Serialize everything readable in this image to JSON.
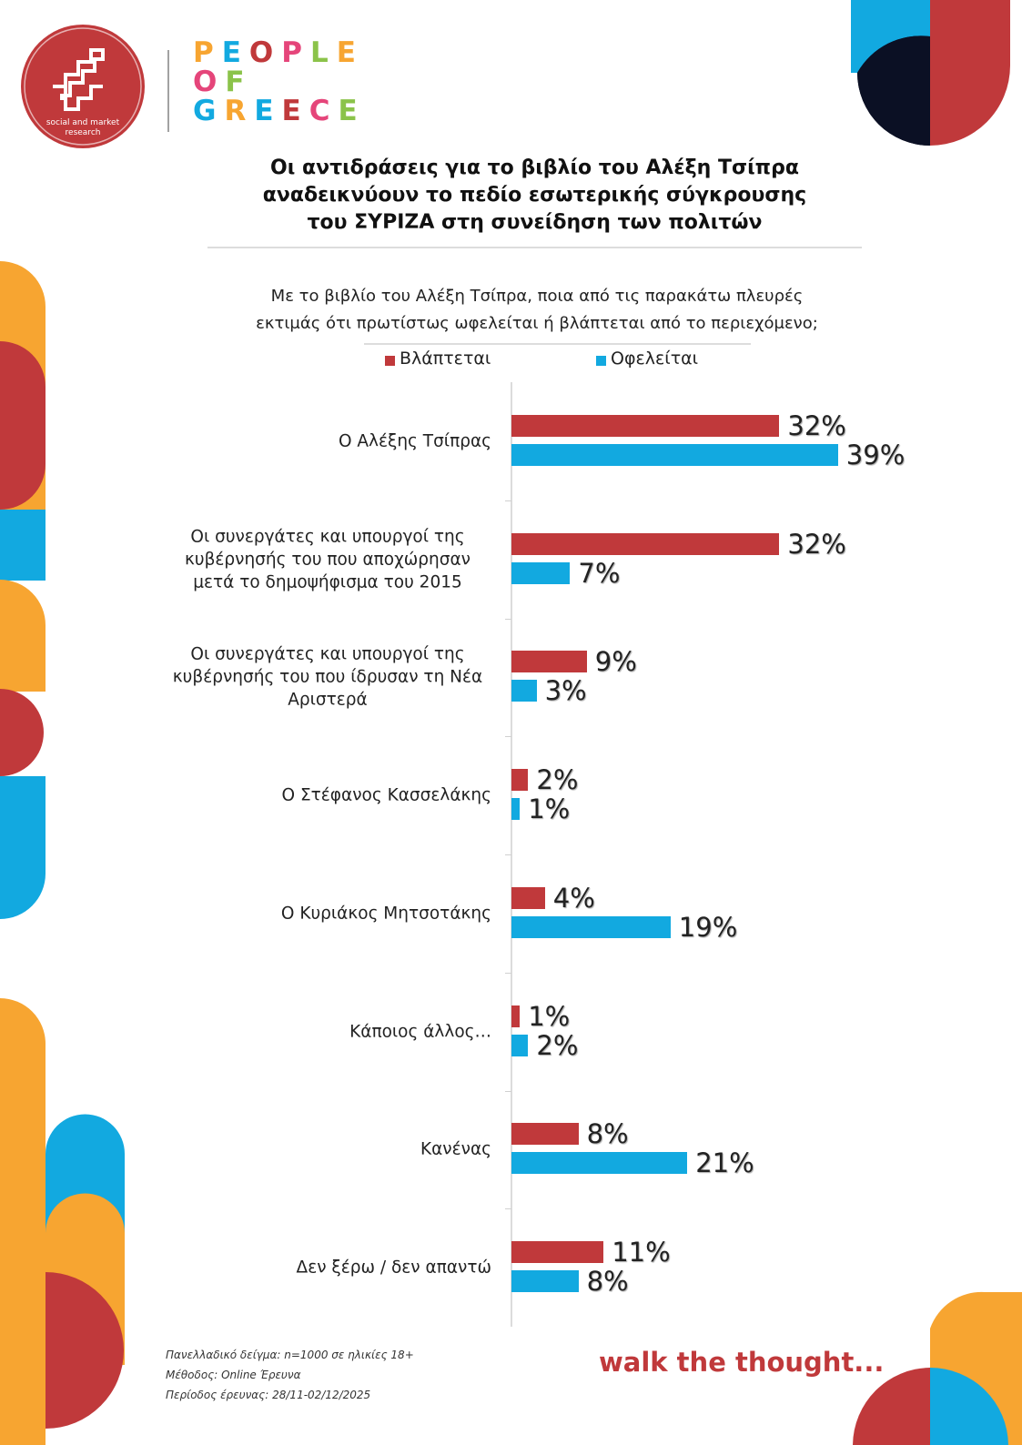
{
  "logo": {
    "caption": "social and market research",
    "brand_lines": [
      "PEOPLE",
      "OF",
      "GREECE"
    ]
  },
  "chart_data": {
    "type": "bar",
    "orientation": "horizontal",
    "title": [
      "Οι αντιδράσεις για το βιβλίο του Αλέξη Τσίπρα",
      "αναδεικνύουν το πεδίο εσωτερικής σύγκρουσης",
      "του ΣΥΡΙΖΑ στη συνείδηση των πολιτών"
    ],
    "subtitle": [
      "Με το βιβλίο του Αλέξη Τσίπρα, ποια από τις παρακάτω πλευρές",
      "εκτιμάς ότι πρωτίστως ωφελείται ή βλάπτεται από το περιεχόμενο;"
    ],
    "categories": [
      "Ο Αλέξης Τσίπρας",
      "Οι συνεργάτες και υπουργοί της κυβέρνησής του που αποχώρησαν μετά το δημοψήφισμα του 2015",
      "Οι συνεργάτες και υπουργοί της κυβέρνησής του που ίδρυσαν τη Νέα Αριστερά",
      "Ο Στέφανος Κασσελάκης",
      "Ο Κυριάκος Μητσοτάκης",
      "Κάποιος άλλος…",
      "Κανένας",
      "Δεν ξέρω / δεν απαντώ"
    ],
    "series": [
      {
        "name": "Βλάπτεται",
        "color": "#c0393b",
        "values": [
          32,
          32,
          9,
          2,
          4,
          1,
          8,
          11
        ],
        "value_labels": [
          "32%",
          "32%",
          "9%",
          "2%",
          "4%",
          "1%",
          "8%",
          "11%"
        ]
      },
      {
        "name": "Οφελείται",
        "color": "#12a9e0",
        "values": [
          39,
          7,
          3,
          1,
          19,
          2,
          21,
          8
        ],
        "value_labels": [
          "39%",
          "7%",
          "3%",
          "1%",
          "19%",
          "2%",
          "21%",
          "8%"
        ]
      }
    ]
  },
  "footer": {
    "notes": [
      "Πανελλαδικό δείγμα: n=1000 σε ηλικίες 18+",
      "Μέθοδος: Online Έρευνα",
      "Περίοδος έρευνας: 28/11-02/12/2025"
    ],
    "slogan": "walk the thought..."
  }
}
